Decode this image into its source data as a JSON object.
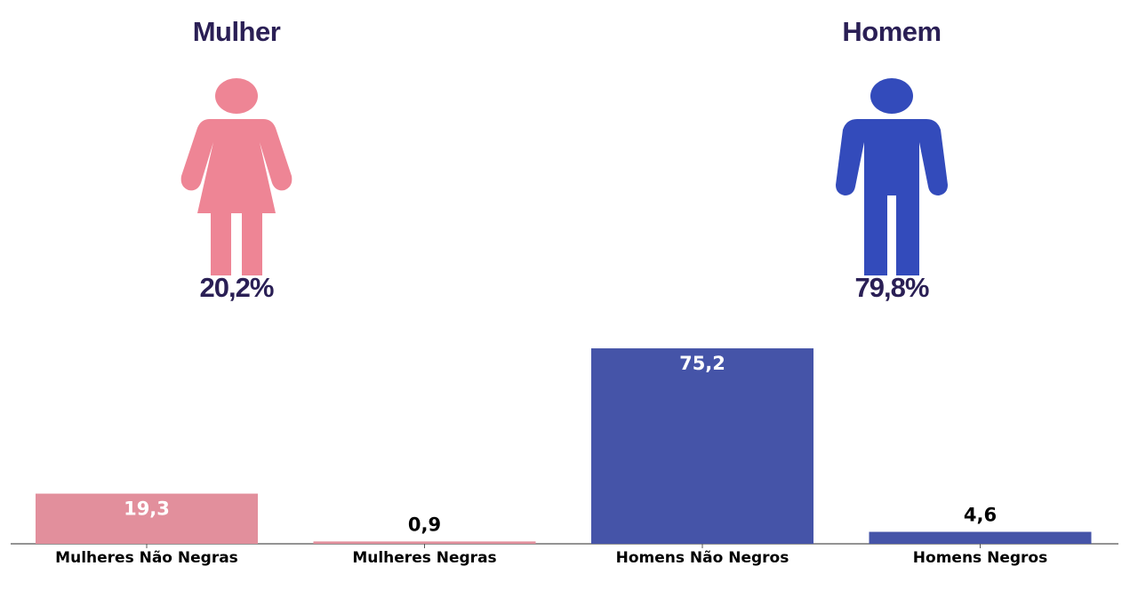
{
  "gender": {
    "female": {
      "title": "Mulher",
      "percent": "20,2%",
      "color": "#ee8595",
      "icon": "woman-icon"
    },
    "male": {
      "title": "Homem",
      "percent": "79,8%",
      "color": "#334bbb",
      "icon": "man-icon"
    }
  },
  "chart_data": {
    "type": "bar",
    "categories": [
      "Mulheres Não Negras",
      "Mulheres Negras",
      "Homens Não Negros",
      "Homens Negros"
    ],
    "values": [
      19.3,
      0.9,
      75.2,
      4.6
    ],
    "value_labels": [
      "19,3",
      "0,9",
      "75,2",
      "4,6"
    ],
    "colors": [
      "#e28f9c",
      "#e28f9c",
      "#4554a8",
      "#4554a8"
    ],
    "label_inside": [
      true,
      false,
      true,
      false
    ],
    "ylim": [
      0,
      80
    ],
    "grid": false,
    "title": "",
    "xlabel": "",
    "ylabel": ""
  }
}
